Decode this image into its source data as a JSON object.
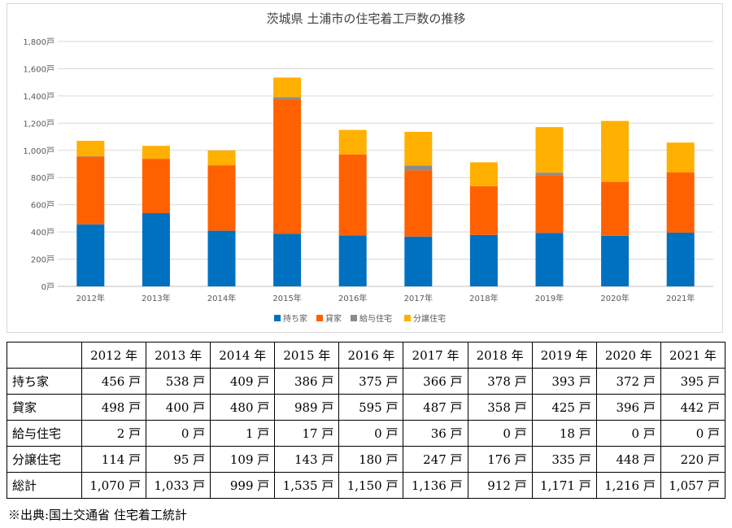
{
  "chart_data": {
    "type": "bar",
    "stacked": true,
    "title": "茨城県 土浦市の住宅着工戸数の推移",
    "categories": [
      "2012年",
      "2013年",
      "2014年",
      "2015年",
      "2016年",
      "2017年",
      "2018年",
      "2019年",
      "2020年",
      "2021年"
    ],
    "series": [
      {
        "name": "持ち家",
        "color": "#0070c0",
        "values": [
          456,
          538,
          409,
          386,
          375,
          366,
          378,
          393,
          372,
          395
        ]
      },
      {
        "name": "貸家",
        "color": "#ff6000",
        "values": [
          498,
          400,
          480,
          989,
          595,
          487,
          358,
          425,
          396,
          442
        ]
      },
      {
        "name": "給与住宅",
        "color": "#8c8c8c",
        "values": [
          2,
          0,
          1,
          17,
          0,
          36,
          0,
          18,
          0,
          0
        ]
      },
      {
        "name": "分譲住宅",
        "color": "#ffb000",
        "values": [
          114,
          95,
          109,
          143,
          180,
          247,
          176,
          335,
          448,
          220
        ]
      }
    ],
    "ylim": [
      0,
      1800
    ],
    "yticks": [
      "0戸",
      "200戸",
      "400戸",
      "600戸",
      "800戸",
      "1,000戸",
      "1,200戸",
      "1,400戸",
      "1,600戸",
      "1,800戸"
    ],
    "grid": true,
    "legend_position": "bottom"
  },
  "table": {
    "headers": [
      "2012 年",
      "2013 年",
      "2014 年",
      "2015 年",
      "2016 年",
      "2017 年",
      "2018 年",
      "2019 年",
      "2020 年",
      "2021 年"
    ],
    "rows": [
      {
        "label": "持ち家",
        "cells": [
          "456 戸",
          "538 戸",
          "409 戸",
          "386 戸",
          "375 戸",
          "366 戸",
          "378 戸",
          "393 戸",
          "372 戸",
          "395 戸"
        ]
      },
      {
        "label": "貸家",
        "cells": [
          "498 戸",
          "400 戸",
          "480 戸",
          "989 戸",
          "595 戸",
          "487 戸",
          "358 戸",
          "425 戸",
          "396 戸",
          "442 戸"
        ]
      },
      {
        "label": "給与住宅",
        "cells": [
          "2 戸",
          "0 戸",
          "1 戸",
          "17 戸",
          "0 戸",
          "36 戸",
          "0 戸",
          "18 戸",
          "0 戸",
          "0 戸"
        ]
      },
      {
        "label": "分譲住宅",
        "cells": [
          "114 戸",
          "95 戸",
          "109 戸",
          "143 戸",
          "180 戸",
          "247 戸",
          "176 戸",
          "335 戸",
          "448 戸",
          "220 戸"
        ]
      },
      {
        "label": "総計",
        "cells": [
          "1,070 戸",
          "1,033 戸",
          "999 戸",
          "1,535 戸",
          "1,150 戸",
          "1,136 戸",
          "912 戸",
          "1,171 戸",
          "1,216 戸",
          "1,057 戸"
        ]
      }
    ]
  },
  "source_note": "※出典:国土交通省 住宅着工統計"
}
